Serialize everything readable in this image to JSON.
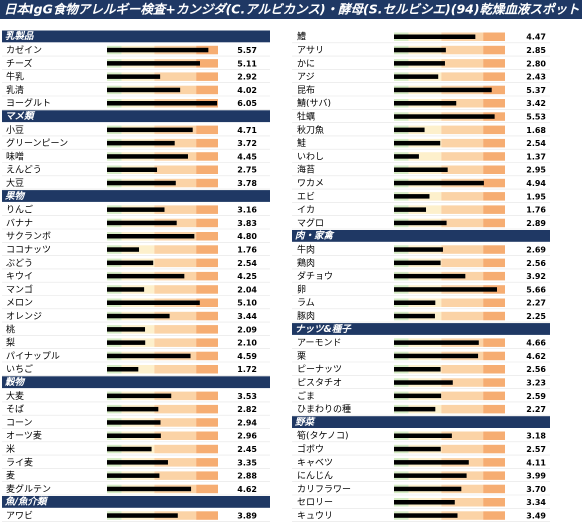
{
  "chart_data": {
    "type": "bar",
    "title": "日本IgG食物アレルギー検査+カンジダ(C.アルビカンス)・酵母(S.セルビシエ)(94)乾燥血液スポット",
    "xlim": [
      0,
      6.1
    ],
    "color": "#000000",
    "header_color": "#1f3864",
    "zones": [
      {
        "from": 0,
        "to": 0.8,
        "color": "#d6ecc4"
      },
      {
        "from": 0.8,
        "to": 2.6,
        "color": "#fdf0cc"
      },
      {
        "from": 2.6,
        "to": 4.9,
        "color": "#fbd3a6"
      },
      {
        "from": 4.9,
        "to": 6.1,
        "color": "#f6ad72"
      }
    ],
    "groups": [
      {
        "name": "乳製品",
        "categories": [
          "カゼイン",
          "チーズ",
          "牛乳",
          "乳清",
          "ヨーグルト"
        ],
        "values": [
          5.57,
          5.11,
          2.92,
          4.02,
          6.05
        ],
        "value_labels": [
          "5.57",
          "5.11",
          "2.92",
          "4.02",
          "6.05"
        ]
      },
      {
        "name": "マメ類",
        "categories": [
          "小豆",
          "グリーンピーン",
          "味噌",
          "えんどう",
          "大豆"
        ],
        "values": [
          4.71,
          3.72,
          4.45,
          2.75,
          3.78
        ],
        "value_labels": [
          "4.71",
          "3.72",
          "4.45",
          "2.75",
          "3.78"
        ]
      },
      {
        "name": "果物",
        "categories": [
          "りんご",
          "バナナ",
          "サクランボ",
          "ココナッツ",
          "ぶどう",
          "キウイ",
          "マンゴ",
          "メロン",
          "オレンジ",
          "桃",
          "梨",
          "パイナップル",
          "いちご"
        ],
        "values": [
          3.16,
          3.83,
          4.8,
          1.76,
          2.54,
          4.25,
          2.04,
          5.1,
          3.44,
          2.09,
          2.1,
          4.59,
          1.72
        ],
        "value_labels": [
          "3.16",
          "3.83",
          "4.80",
          "1.76",
          "2.54",
          "4.25",
          "2.04",
          "5.10",
          "3.44",
          "2.09",
          "2.10",
          "4.59",
          "1.72"
        ]
      },
      {
        "name": "穀物",
        "categories": [
          "大麦",
          "そば",
          "コーン",
          "オーツ麦",
          "米",
          "ライ麦",
          "麦",
          "麦グルテン"
        ],
        "values": [
          3.53,
          2.82,
          2.94,
          2.96,
          2.45,
          3.35,
          2.88,
          4.62
        ],
        "value_labels": [
          "3.53",
          "2.82",
          "2.94",
          "2.96",
          "2.45",
          "3.35",
          "2.88",
          "4.62"
        ]
      },
      {
        "name": "魚/魚介類",
        "categories": [
          "アワビ",
          "鱧",
          "アサリ",
          "かに",
          "アジ",
          "昆布",
          "鯖(サバ)",
          "牡蠣",
          "秋刀魚",
          "鮭",
          "いわし",
          "海苔",
          "ワカメ",
          "エビ",
          "イカ",
          "マグロ"
        ],
        "values": [
          3.89,
          4.47,
          2.85,
          2.8,
          2.43,
          5.37,
          3.42,
          5.53,
          1.68,
          2.54,
          1.37,
          2.95,
          4.94,
          1.95,
          1.76,
          2.89
        ],
        "value_labels": [
          "3.89",
          "4.47",
          "2.85",
          "2.80",
          "2.43",
          "5.37",
          "3.42",
          "5.53",
          "1.68",
          "2.54",
          "1.37",
          "2.95",
          "4.94",
          "1.95",
          "1.76",
          "2.89"
        ]
      },
      {
        "name": "肉・家禽",
        "categories": [
          "牛肉",
          "鶏肉",
          "ダチョウ",
          "卵",
          "ラム",
          "豚肉"
        ],
        "values": [
          2.69,
          2.56,
          3.92,
          5.66,
          2.27,
          2.25
        ],
        "value_labels": [
          "2.69",
          "2.56",
          "3.92",
          "5.66",
          "2.27",
          "2.25"
        ]
      },
      {
        "name": "ナッツ&種子",
        "categories": [
          "アーモンド",
          "栗",
          "ピーナッツ",
          "ピスタチオ",
          "ごま",
          "ひまわりの種"
        ],
        "values": [
          4.66,
          4.62,
          2.56,
          3.23,
          2.59,
          2.27
        ],
        "value_labels": [
          "4.66",
          "4.62",
          "2.56",
          "3.23",
          "2.59",
          "2.27"
        ]
      },
      {
        "name": "野菜",
        "categories": [
          "筍(タケノコ)",
          "ゴボウ",
          "キャベツ",
          "にんじん",
          "カリフラワー",
          "セロリー",
          "キュウリ"
        ],
        "values": [
          3.18,
          2.57,
          4.11,
          3.99,
          3.7,
          3.34,
          3.49
        ],
        "value_labels": [
          "3.18",
          "2.57",
          "4.11",
          "3.99",
          "3.70",
          "3.34",
          "3.49"
        ]
      }
    ]
  }
}
